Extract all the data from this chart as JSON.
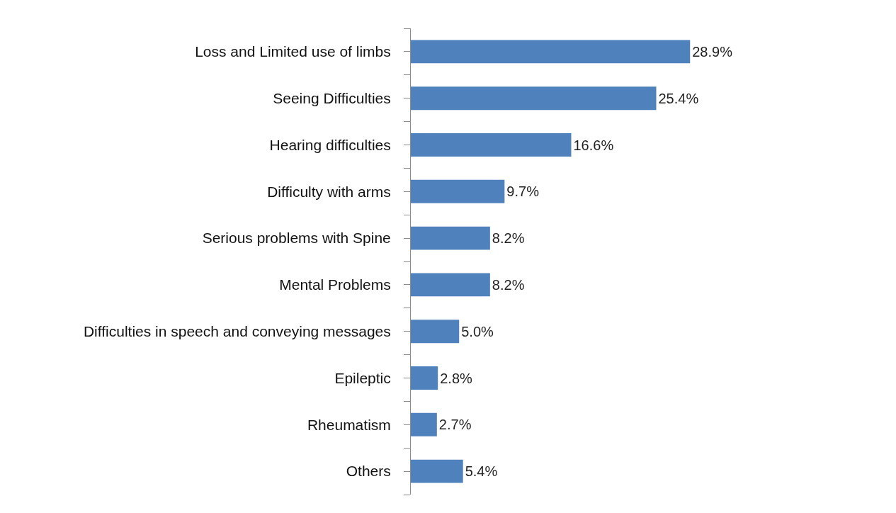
{
  "chart_data": {
    "type": "bar",
    "orientation": "horizontal",
    "categories": [
      "Loss and Limited use of limbs",
      "Seeing Difficulties",
      "Hearing difficulties",
      "Difficulty with arms",
      "Serious problems with Spine",
      "Mental Problems",
      "Difficulties in speech and conveying messages",
      "Epileptic",
      "Rheumatism",
      "Others"
    ],
    "values": [
      28.9,
      25.4,
      16.6,
      9.7,
      8.2,
      8.2,
      5.0,
      2.8,
      2.7,
      5.4
    ],
    "value_labels": [
      "28.9%",
      "25.4%",
      "16.6%",
      "9.7%",
      "8.2%",
      "8.2%",
      "5.0%",
      "2.8%",
      "2.7%",
      "5.4%"
    ],
    "color": "#4f81bd",
    "tick_labels": "y"
  }
}
